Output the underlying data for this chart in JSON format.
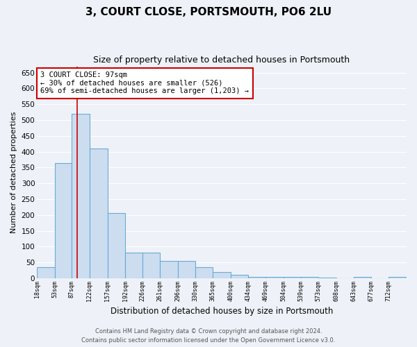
{
  "title": "3, COURT CLOSE, PORTSMOUTH, PO6 2LU",
  "subtitle": "Size of property relative to detached houses in Portsmouth",
  "xlabel": "Distribution of detached houses by size in Portsmouth",
  "ylabel": "Number of detached properties",
  "property_size": 97,
  "annotation_line1": "3 COURT CLOSE: 97sqm",
  "annotation_line2": "← 30% of detached houses are smaller (526)",
  "annotation_line3": "69% of semi-detached houses are larger (1,203) →",
  "footer_line1": "Contains HM Land Registry data © Crown copyright and database right 2024.",
  "footer_line2": "Contains public sector information licensed under the Open Government Licence v3.0.",
  "bar_color": "#ccddf0",
  "bar_edge_color": "#6aaad4",
  "red_line_color": "#cc0000",
  "background_color": "#eef2f8",
  "grid_color": "#ffffff",
  "ylim": [
    0,
    670
  ],
  "bin_labels": [
    "18sqm",
    "53sqm",
    "87sqm",
    "122sqm",
    "157sqm",
    "192sqm",
    "226sqm",
    "261sqm",
    "296sqm",
    "330sqm",
    "365sqm",
    "400sqm",
    "434sqm",
    "469sqm",
    "504sqm",
    "539sqm",
    "573sqm",
    "608sqm",
    "643sqm",
    "677sqm",
    "712sqm"
  ],
  "bin_edges": [
    18,
    53,
    87,
    122,
    157,
    192,
    226,
    261,
    296,
    330,
    365,
    400,
    434,
    469,
    504,
    539,
    573,
    608,
    643,
    677,
    712,
    747
  ],
  "bar_heights": [
    35,
    365,
    520,
    410,
    205,
    80,
    80,
    55,
    55,
    35,
    20,
    10,
    5,
    5,
    5,
    5,
    2,
    0,
    5,
    0,
    5
  ],
  "yticks": [
    0,
    50,
    100,
    150,
    200,
    250,
    300,
    350,
    400,
    450,
    500,
    550,
    600,
    650
  ]
}
